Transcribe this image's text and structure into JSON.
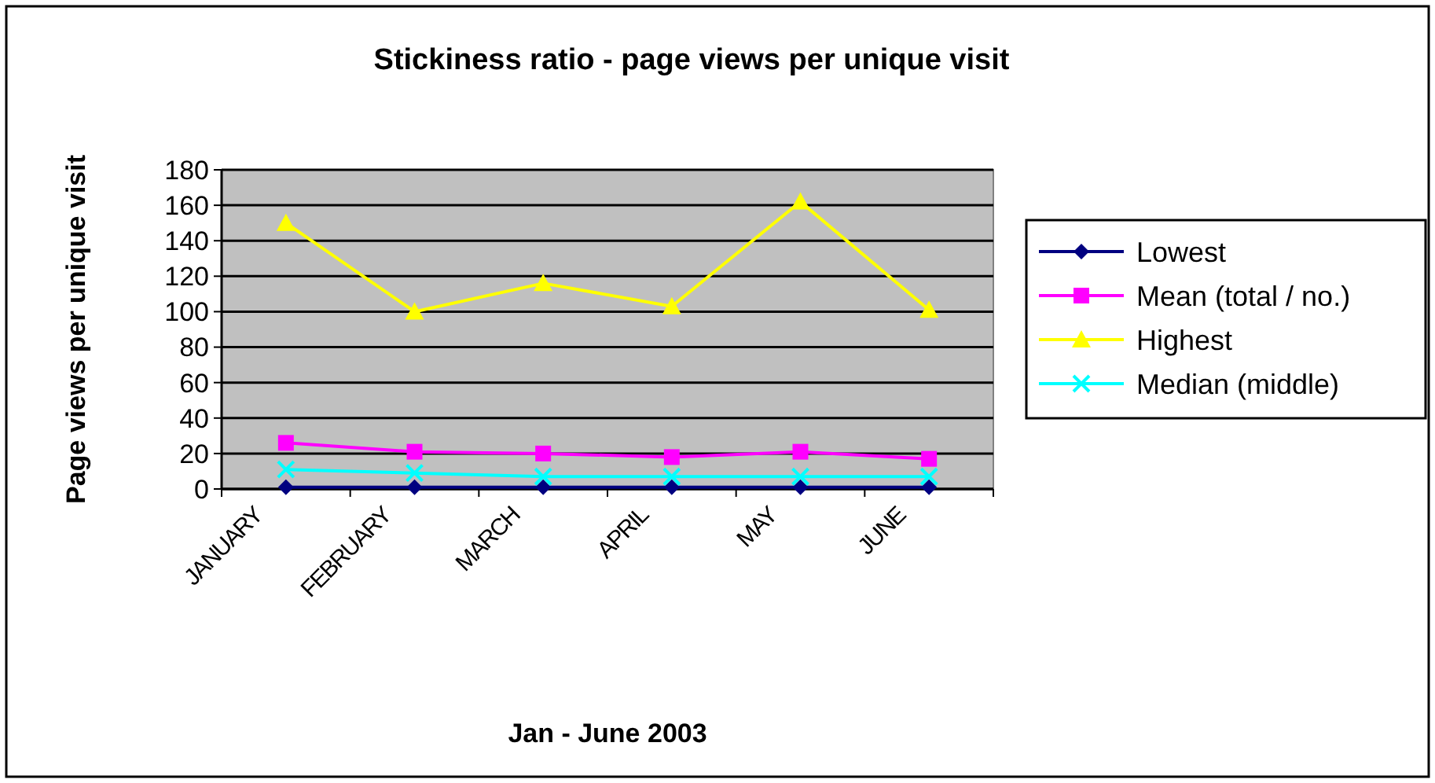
{
  "chart_data": {
    "type": "line",
    "title": "Stickiness ratio - page views per unique visit",
    "xlabel": "Jan - June 2003",
    "ylabel": "Page views per unique visit",
    "categories": [
      "JANUARY",
      "FEBRUARY",
      "MARCH",
      "APRIL",
      "MAY",
      "JUNE"
    ],
    "series": [
      {
        "name": "Lowest",
        "color": "#000080",
        "marker": "diamond",
        "values": [
          1,
          1,
          1,
          1,
          1,
          1
        ]
      },
      {
        "name": "Mean (total / no.)",
        "color": "#ff00ff",
        "marker": "square",
        "values": [
          26,
          21,
          20,
          18,
          21,
          17
        ]
      },
      {
        "name": "Highest",
        "color": "#ffff00",
        "marker": "triangle",
        "values": [
          150,
          100,
          116,
          103,
          162,
          101
        ]
      },
      {
        "name": "Median (middle)",
        "color": "#00ffff",
        "marker": "cross",
        "values": [
          11,
          9,
          7,
          7,
          7,
          7
        ]
      }
    ],
    "ylim": [
      0,
      180
    ],
    "yticks": [
      0,
      20,
      40,
      60,
      80,
      100,
      120,
      140,
      160,
      180
    ],
    "grid": "y",
    "legend": "right"
  }
}
